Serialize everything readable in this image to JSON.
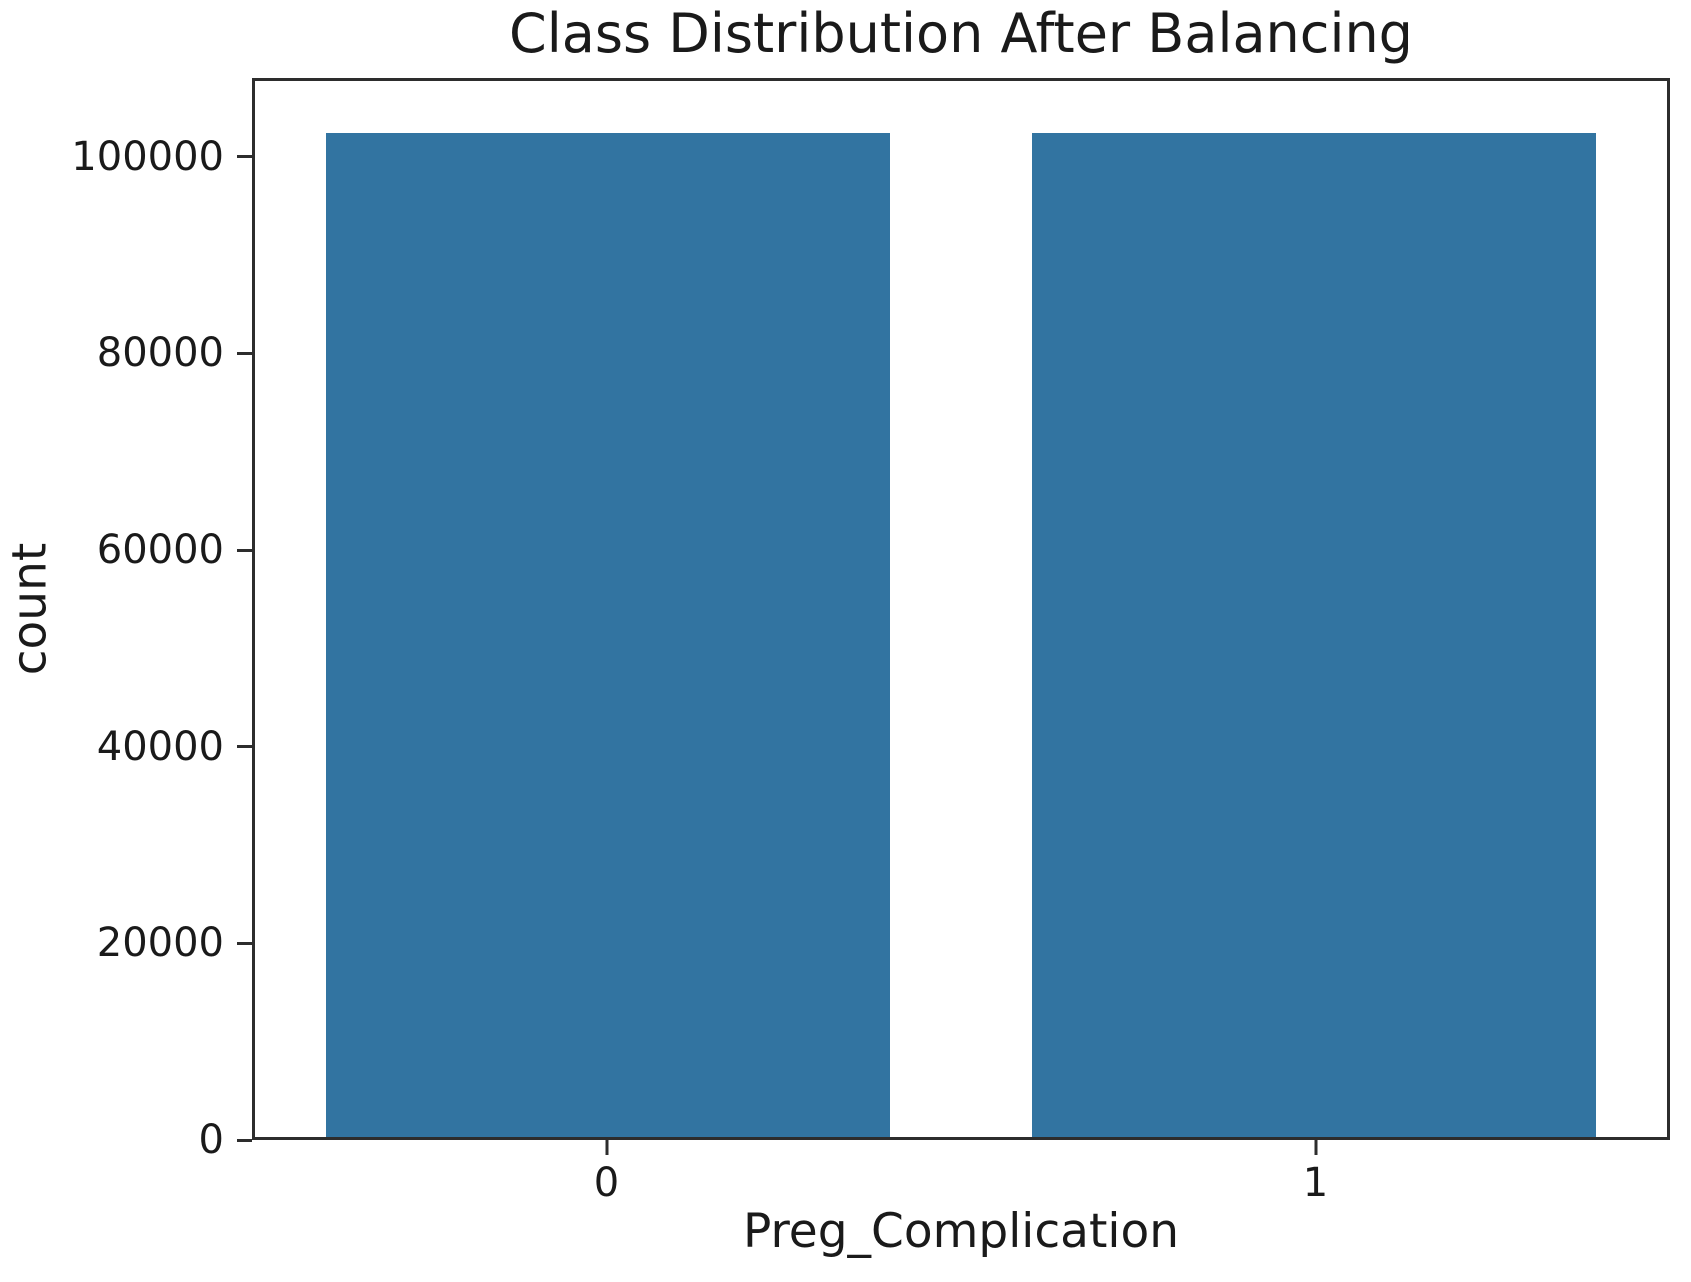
{
  "chart_data": {
    "type": "bar",
    "title": "Class Distribution After Balancing",
    "xlabel": "Preg_Complication",
    "ylabel": "count",
    "categories": [
      "0",
      "1"
    ],
    "values": [
      102700,
      102700
    ],
    "yticks": [
      0,
      20000,
      40000,
      60000,
      80000,
      100000
    ],
    "ylim": [
      0,
      108000
    ],
    "xlim": [
      -0.5,
      1.5
    ],
    "bar_width": 0.8,
    "bar_color": "#3274a1",
    "grid": false,
    "legend": "none",
    "background_color": "#ffffff",
    "spine_color": "#2d2d2d"
  }
}
